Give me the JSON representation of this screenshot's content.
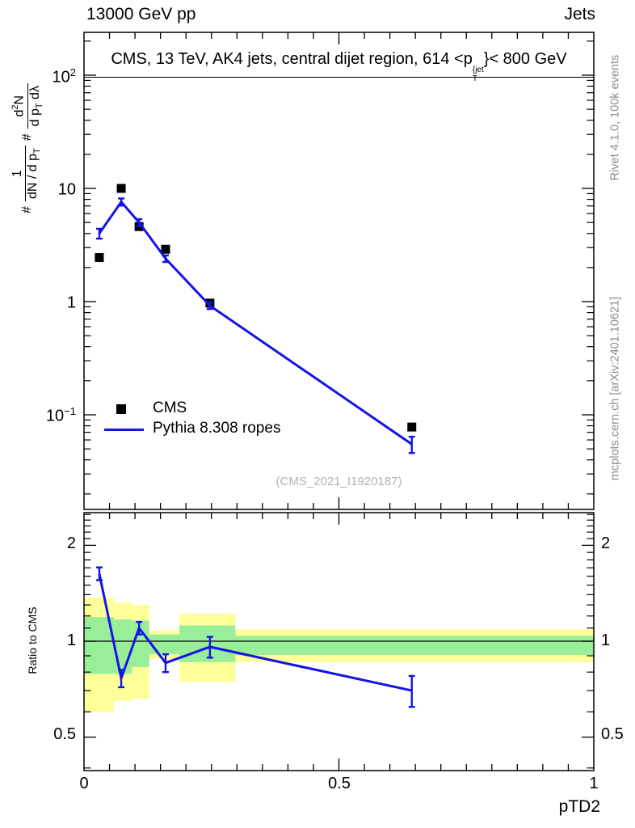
{
  "header": {
    "left": "13000 GeV pp",
    "right": "Jets"
  },
  "title": {
    "pre": "CMS, 13 TeV, AK4 jets, central dijet region, 614 <p",
    "sup": "{jet",
    "sub": "T",
    "post": "}< 800 GeV"
  },
  "watermark": "(CMS_2021_I1920187)",
  "side_text": {
    "top": "Rivet 4.1.0,  100k events",
    "bottom": "mcplots.cern.ch [arXiv:2401.10621]"
  },
  "ylabel_main": {
    "hash1": "#",
    "frac1": {
      "num": "1",
      "den_pre": "dN / d p",
      "den_sub": "T"
    },
    "hash2": "#",
    "frac2": {
      "num_pre": "d",
      "num_sup": "2",
      "num_post": "N",
      "den_pre": "d p",
      "den_sub": "T",
      "den_post": " dλ"
    }
  },
  "ratio_ylabel": "Ratio to CMS",
  "xlabel": "pTD2",
  "legend": [
    {
      "label": "CMS",
      "marker": "filled-square",
      "color": "#000000"
    },
    {
      "label": "Pythia 8.308 ropes",
      "marker": "line",
      "color": "#1414e6"
    }
  ],
  "colors": {
    "mc_blue": "#1414e6",
    "data_black": "#000000",
    "band_yellow": "#ffff99",
    "band_green": "#99ef99",
    "gray_text": "#8c8c8c"
  },
  "axes": {
    "main_yticks": [
      {
        "base": "10",
        "exp": "2"
      },
      {
        "base": "10",
        "exp": ""
      },
      {
        "base": "1",
        "exp": ""
      },
      {
        "base": "10",
        "exp": "−1"
      }
    ],
    "ratio_yticks": [
      "2",
      "1",
      "0.5"
    ],
    "xticks": [
      "0",
      "0.5",
      "1"
    ]
  },
  "chart_data": [
    {
      "type": "line",
      "title": "CMS, 13 TeV, AK4 jets, central dijet region, 614 < pT_jet < 800 GeV",
      "xlabel": "pTD2",
      "ylabel": "# 1/(dN/dpT) # d2N/(dpT dLambda)",
      "xlim": [
        0,
        1
      ],
      "ylog": true,
      "ylim": [
        0.0143,
        239
      ],
      "x_major_ticks": [
        0,
        0.5,
        1
      ],
      "x_minor_step": 0.05,
      "y_major_ticks": [
        100,
        10,
        1,
        0.1
      ],
      "grid": false,
      "legend_position": "lower-left-inside",
      "x": [
        0.03,
        0.073,
        0.108,
        0.16,
        0.247,
        0.643
      ],
      "series": [
        {
          "name": "CMS",
          "type": "scatter",
          "marker": "filled-square",
          "color": "#000000",
          "y": [
            2.45,
            10.0,
            4.6,
            2.9,
            0.97,
            0.078
          ]
        },
        {
          "name": "Pythia 8.308 ropes",
          "type": "line-with-errors",
          "color": "#1414e6",
          "y": [
            4.0,
            7.6,
            5.0,
            2.4,
            0.92,
            0.055
          ],
          "yerr": [
            0.4,
            0.55,
            0.35,
            0.16,
            0.06,
            0.009
          ]
        }
      ]
    },
    {
      "type": "ratio",
      "ylabel": "Ratio to CMS",
      "ylog": true,
      "ylim": [
        0.392,
        2.55
      ],
      "y_major_ticks": [
        0.5,
        1,
        2
      ],
      "reference_line": 1,
      "x": [
        0.03,
        0.073,
        0.108,
        0.16,
        0.247,
        0.643
      ],
      "series": [
        {
          "name": "Pythia 8.308 ropes / CMS",
          "type": "line-with-errors",
          "color": "#1414e6",
          "y": [
            1.63,
            0.765,
            1.1,
            0.855,
            0.96,
            0.7
          ],
          "yerr": [
            0.075,
            0.048,
            0.05,
            0.055,
            0.072,
            0.078
          ]
        }
      ],
      "uncertainty_bands": [
        {
          "x0": 0.0,
          "x1": 0.059,
          "yellow": [
            0.6,
            1.37
          ],
          "green": [
            0.79,
            1.19
          ]
        },
        {
          "x0": 0.059,
          "x1": 0.094,
          "yellow": [
            0.65,
            1.32
          ],
          "green": [
            0.79,
            1.17
          ]
        },
        {
          "x0": 0.094,
          "x1": 0.128,
          "yellow": [
            0.66,
            1.3
          ],
          "green": [
            0.83,
            1.16
          ]
        },
        {
          "x0": 0.128,
          "x1": 0.187,
          "yellow": [
            0.88,
            1.08
          ],
          "green": [
            0.91,
            1.05
          ]
        },
        {
          "x0": 0.187,
          "x1": 0.297,
          "yellow": [
            0.745,
            1.22
          ],
          "green": [
            0.86,
            1.12
          ]
        },
        {
          "x0": 0.297,
          "x1": 1.0,
          "yellow": [
            0.86,
            1.09
          ],
          "green": [
            0.905,
            1.04
          ]
        }
      ]
    }
  ]
}
